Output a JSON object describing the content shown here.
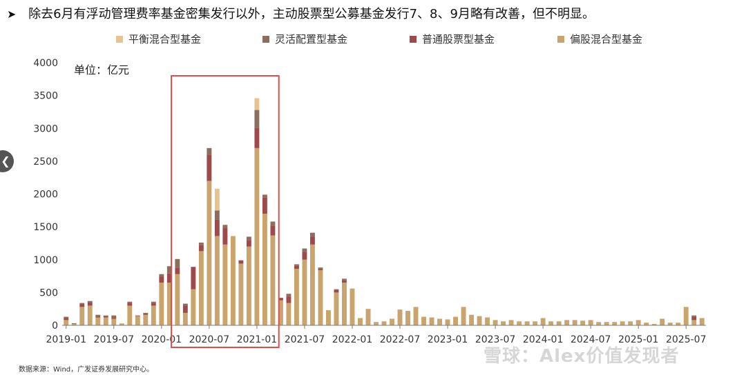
{
  "headline": {
    "bullet": "➤",
    "text": "除去6月有浮动管理费率基金密集发行以外，主动股票型公募基金发行7、8、9月略有改善，但不明显。"
  },
  "unit_label": "单位：亿元",
  "source": "数据来源：Wind，广发证券发展研究中心。",
  "watermark": "雪球：Alex价值发现者",
  "icons": {
    "nav": "chevron-left-icon",
    "watermark_logo": "snowball-logo"
  },
  "colors": {
    "balanced": "#e7c48f",
    "flexible": "#8b6e5c",
    "stock": "#9e4a4c",
    "equity_biased": "#c9a46c",
    "highlight_box": "#e24b4b",
    "axis": "#7a7a7a"
  },
  "chart_data": {
    "type": "bar",
    "stacked": true,
    "ylim": [
      0,
      4000
    ],
    "yticks": [
      0,
      500,
      1000,
      1500,
      2000,
      2500,
      3000,
      3500,
      4000
    ],
    "xtick_labels": [
      "2019-01",
      "2019-07",
      "2020-01",
      "2020-07",
      "2021-01",
      "2021-07",
      "2022-01",
      "2022-07",
      "2023-01",
      "2023-07",
      "2024-01",
      "2024-07",
      "2025-01",
      "2025-07"
    ],
    "legend": [
      "平衡混合型基金",
      "灵活配置型基金",
      "普通股票型基金",
      "偏股混合型基金"
    ],
    "legend_position": "top",
    "highlight_range": [
      "2020-03",
      "2021-03"
    ],
    "categories": [
      "2019-01",
      "2019-02",
      "2019-03",
      "2019-04",
      "2019-05",
      "2019-06",
      "2019-07",
      "2019-08",
      "2019-09",
      "2019-10",
      "2019-11",
      "2019-12",
      "2020-01",
      "2020-02",
      "2020-03",
      "2020-04",
      "2020-05",
      "2020-06",
      "2020-07",
      "2020-08",
      "2020-09",
      "2020-10",
      "2020-11",
      "2020-12",
      "2021-01",
      "2021-02",
      "2021-03",
      "2021-04",
      "2021-05",
      "2021-06",
      "2021-07",
      "2021-08",
      "2021-09",
      "2021-10",
      "2021-11",
      "2021-12",
      "2022-01",
      "2022-02",
      "2022-03",
      "2022-04",
      "2022-05",
      "2022-06",
      "2022-07",
      "2022-08",
      "2022-09",
      "2022-10",
      "2022-11",
      "2022-12",
      "2023-01",
      "2023-02",
      "2023-03",
      "2023-04",
      "2023-05",
      "2023-06",
      "2023-07",
      "2023-08",
      "2023-09",
      "2023-10",
      "2023-11",
      "2023-12",
      "2024-01",
      "2024-02",
      "2024-03",
      "2024-04",
      "2024-05",
      "2024-06",
      "2024-07",
      "2024-08",
      "2024-09",
      "2024-10",
      "2024-11",
      "2024-12",
      "2025-01",
      "2025-02",
      "2025-03",
      "2025-04",
      "2025-05",
      "2025-06",
      "2025-07",
      "2025-08",
      "2025-09"
    ],
    "series": [
      {
        "name": "偏股混合型基金",
        "values": [
          80,
          20,
          280,
          300,
          120,
          120,
          100,
          20,
          300,
          140,
          160,
          300,
          650,
          650,
          780,
          190,
          550,
          1130,
          2200,
          1360,
          1230,
          1360,
          940,
          1200,
          2700,
          1700,
          1370,
          380,
          340,
          860,
          1000,
          1230,
          840,
          230,
          500,
          650,
          560,
          110,
          250,
          50,
          60,
          100,
          240,
          220,
          280,
          130,
          120,
          100,
          90,
          130,
          280,
          160,
          140,
          120,
          80,
          60,
          80,
          60,
          60,
          60,
          110,
          60,
          60,
          80,
          80,
          70,
          80,
          50,
          50,
          50,
          60,
          60,
          80,
          40,
          20,
          100,
          40,
          40,
          280,
          80,
          110
        ]
      },
      {
        "name": "普通股票型基金",
        "values": [
          30,
          10,
          40,
          50,
          20,
          20,
          20,
          5,
          40,
          10,
          20,
          40,
          90,
          140,
          100,
          110,
          340,
          90,
          400,
          250,
          250,
          0,
          50,
          100,
          310,
          250,
          150,
          30,
          100,
          50,
          120,
          120,
          20,
          0,
          40,
          40,
          0,
          0,
          0,
          0,
          0,
          0,
          0,
          0,
          0,
          0,
          0,
          0,
          0,
          0,
          0,
          0,
          0,
          0,
          0,
          0,
          0,
          0,
          0,
          0,
          0,
          0,
          0,
          0,
          0,
          0,
          0,
          0,
          0,
          0,
          0,
          0,
          0,
          0,
          0,
          0,
          0,
          0,
          0,
          50,
          0
        ]
      },
      {
        "name": "灵活配置型基金",
        "values": [
          20,
          0,
          20,
          20,
          20,
          10,
          30,
          0,
          20,
          0,
          10,
          20,
          40,
          110,
          130,
          30,
          0,
          40,
          100,
          140,
          50,
          0,
          0,
          50,
          270,
          40,
          60,
          10,
          40,
          20,
          50,
          60,
          20,
          0,
          10,
          20,
          0,
          0,
          0,
          0,
          0,
          0,
          0,
          0,
          0,
          0,
          0,
          0,
          0,
          0,
          0,
          0,
          0,
          0,
          0,
          0,
          0,
          0,
          0,
          0,
          0,
          0,
          0,
          0,
          0,
          0,
          0,
          0,
          0,
          0,
          0,
          0,
          0,
          0,
          0,
          0,
          0,
          0,
          0,
          20,
          0
        ]
      },
      {
        "name": "平衡混合型基金",
        "values": [
          0,
          0,
          0,
          0,
          0,
          0,
          0,
          0,
          0,
          0,
          0,
          0,
          0,
          0,
          0,
          0,
          0,
          0,
          0,
          330,
          0,
          0,
          0,
          0,
          180,
          0,
          0,
          0,
          0,
          0,
          0,
          0,
          0,
          0,
          0,
          0,
          0,
          0,
          0,
          0,
          0,
          0,
          0,
          0,
          0,
          0,
          0,
          0,
          0,
          0,
          0,
          0,
          0,
          0,
          0,
          0,
          0,
          0,
          0,
          0,
          0,
          0,
          0,
          0,
          0,
          0,
          0,
          0,
          0,
          0,
          0,
          0,
          0,
          0,
          0,
          0,
          0,
          0,
          0,
          0,
          0
        ]
      }
    ]
  }
}
